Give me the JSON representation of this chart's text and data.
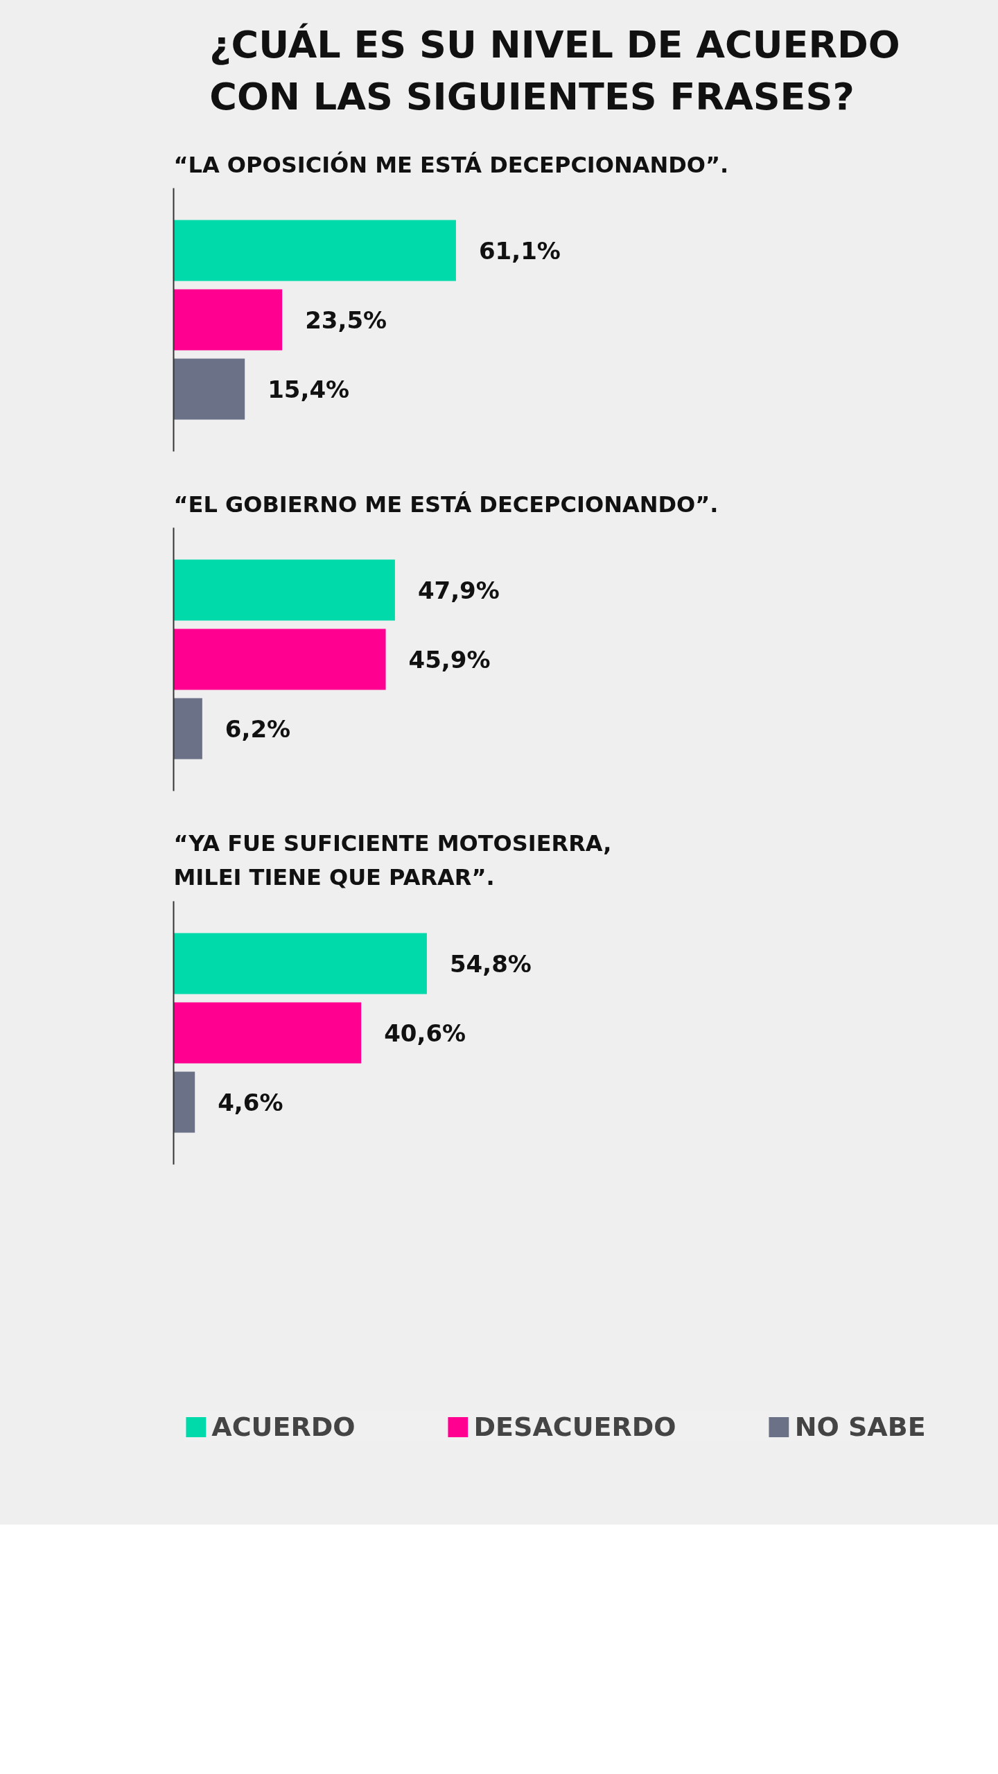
{
  "chart_data": [
    {
      "type": "bar",
      "orientation": "horizontal",
      "title": "¿CUÁL ES SU NIVEL DE ACUERDO CON LAS SIGUIENTES FRASES?",
      "subtitle": "“LA OPOSICIÓN ME ESTÁ DECEPCIONANDO”.",
      "categories": [
        null
      ],
      "grid": false,
      "legend": false,
      "series": [
        {
          "color": "#00d9a9",
          "values": [
            61.1
          ],
          "value_labels": [
            "61,1%"
          ]
        },
        {
          "color": "#ff0090",
          "values": [
            23.5
          ],
          "value_labels": [
            "23,5%"
          ]
        },
        {
          "color": "#6b7186",
          "values": [
            15.4
          ],
          "value_labels": [
            "15,4%"
          ]
        }
      ]
    },
    {
      "type": "bar",
      "orientation": "horizontal",
      "subtitle": "“EL GOBIERNO ME ESTÁ DECEPCIONANDO”.",
      "categories": [
        null
      ],
      "grid": false,
      "legend": false,
      "series": [
        {
          "color": "#00d9a9",
          "values": [
            47.9
          ],
          "value_labels": [
            "47,9%"
          ]
        },
        {
          "color": "#ff0090",
          "values": [
            45.9
          ],
          "value_labels": [
            "45,9%"
          ]
        },
        {
          "color": "#6b7186",
          "values": [
            6.2
          ],
          "value_labels": [
            "6,2%"
          ]
        }
      ]
    },
    {
      "type": "bar",
      "orientation": "horizontal",
      "subtitle": "“YA FUE SUFICIENTE MOTOSIERRA, MILEI TIENE QUE PARAR”.",
      "categories": [
        null
      ],
      "grid": false,
      "legend": "bottom",
      "series": [
        {
          "name": "ACUERDO",
          "color": "#00d9a9",
          "values": [
            54.8
          ],
          "value_labels": [
            "54,8%"
          ]
        },
        {
          "name": "DESACUERDO",
          "color": "#ff0090",
          "values": [
            40.6
          ],
          "value_labels": [
            "40,6%"
          ]
        },
        {
          "name": "NO SABE",
          "color": "#6b7186",
          "values": [
            4.6
          ],
          "value_labels": [
            "4,6%"
          ]
        }
      ]
    }
  ]
}
